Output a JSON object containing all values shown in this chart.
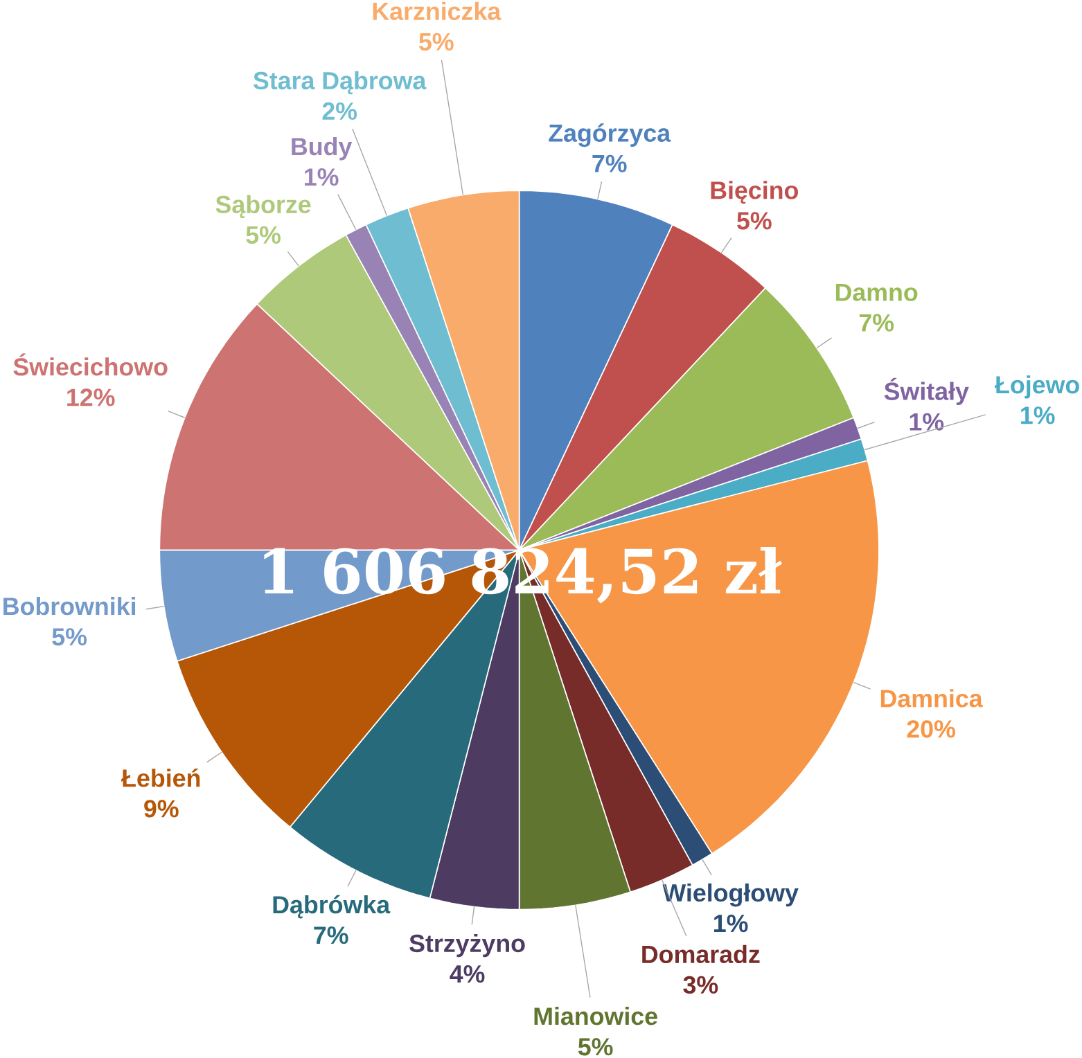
{
  "chart_data": {
    "type": "pie",
    "categories": [
      "Zagórzyca",
      "Bięcino",
      "Damno",
      "Świtały",
      "Łojewo",
      "Damnica",
      "Wielogłowy",
      "Domaradz",
      "Mianowice",
      "Strzyżyno",
      "Dąbrówka",
      "Łebień",
      "Bobrowniki",
      "Świecichowo",
      "Sąborze",
      "Budy",
      "Stara Dąbrowa",
      "Karzniczka"
    ],
    "values": [
      7,
      5,
      7,
      1,
      1,
      20,
      1,
      3,
      5,
      4,
      7,
      9,
      5,
      12,
      5,
      1,
      2,
      5
    ],
    "value_labels": [
      "7%",
      "5%",
      "7%",
      "1%",
      "1%",
      "20%",
      "1%",
      "3%",
      "5%",
      "4%",
      "7%",
      "9%",
      "5%",
      "12%",
      "5%",
      "1%",
      "2%",
      "5%"
    ],
    "colors": [
      "#4f81bd",
      "#c0504d",
      "#9bbb59",
      "#8064a2",
      "#4bacc6",
      "#f79646",
      "#2c4d75",
      "#772c2a",
      "#5f7530",
      "#4d3b62",
      "#276a7c",
      "#b65708",
      "#729aca",
      "#cd7371",
      "#afc97a",
      "#9983b5",
      "#6fbdd1",
      "#f9ab6b"
    ],
    "annotations": [
      "1 606 824,52 zł"
    ]
  }
}
